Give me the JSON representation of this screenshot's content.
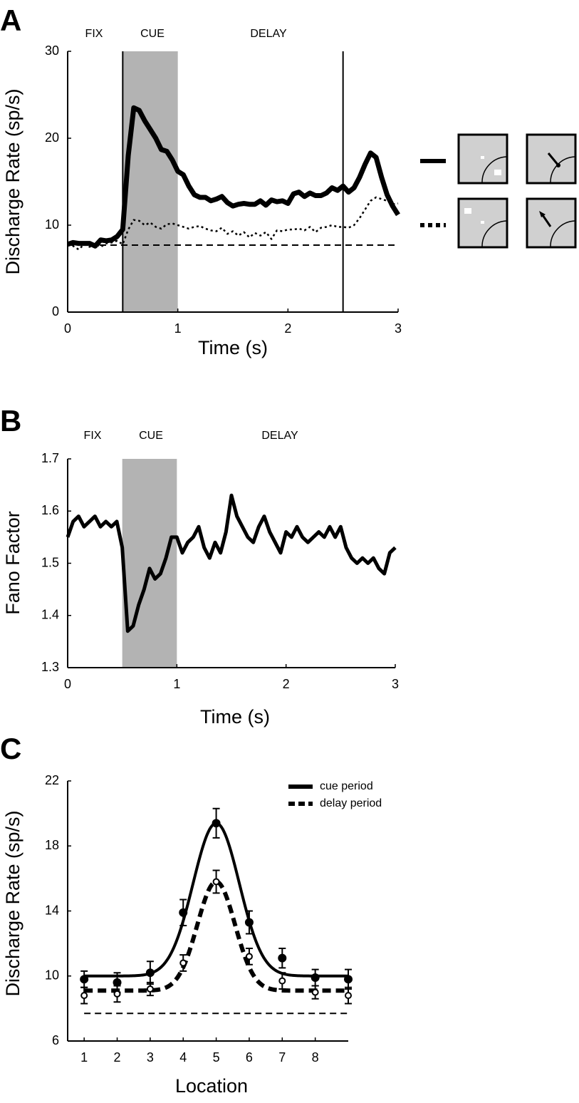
{
  "chart_data": [
    {
      "type": "line",
      "panel": "A",
      "period_labels": [
        "FIX",
        "CUE",
        "DELAY"
      ],
      "xlabel": "Time (s)",
      "ylabel": "Discharge Rate (sp/s)",
      "xlim": [
        0,
        3
      ],
      "ylim": [
        0,
        30
      ],
      "xticks": [
        0,
        1,
        2,
        3
      ],
      "yticks": [
        0,
        10,
        20,
        30
      ],
      "shaded": [
        0.5,
        1
      ],
      "vlines": [
        0.5,
        2.5
      ],
      "baseline": 7.7,
      "x": [
        0,
        0.05,
        0.1,
        0.15,
        0.2,
        0.25,
        0.3,
        0.35,
        0.4,
        0.45,
        0.5,
        0.55,
        0.6,
        0.65,
        0.7,
        0.75,
        0.8,
        0.85,
        0.9,
        0.95,
        1,
        1.05,
        1.1,
        1.15,
        1.2,
        1.25,
        1.3,
        1.35,
        1.4,
        1.45,
        1.5,
        1.55,
        1.6,
        1.65,
        1.7,
        1.75,
        1.8,
        1.85,
        1.9,
        1.95,
        2,
        2.05,
        2.1,
        2.15,
        2.2,
        2.25,
        2.3,
        2.35,
        2.4,
        2.45,
        2.5,
        2.55,
        2.6,
        2.65,
        2.7,
        2.75,
        2.8,
        2.85,
        2.9,
        2.95,
        3
      ],
      "series": [
        {
          "color": "#000000",
          "style": "solid",
          "values": [
            7.8,
            8.0,
            7.9,
            7.9,
            7.9,
            7.6,
            8.3,
            8.2,
            8.3,
            8.7,
            9.5,
            18,
            23.5,
            23.2,
            22,
            21,
            20,
            18.7,
            18.5,
            17.5,
            16.2,
            15.8,
            14.5,
            13.5,
            13.2,
            13.2,
            12.8,
            13.0,
            13.3,
            12.6,
            12.2,
            12.4,
            12.5,
            12.4,
            12.4,
            12.8,
            12.3,
            12.9,
            12.7,
            12.8,
            12.5,
            13.6,
            13.8,
            13.3,
            13.7,
            13.4,
            13.4,
            13.7,
            14.3,
            14.0,
            14.5,
            13.8,
            14.3,
            15.5,
            17.0,
            18.3,
            17.8,
            15.5,
            13.5,
            12.2,
            11.2
          ]
        },
        {
          "color": "#000000",
          "style": "dotted",
          "values": [
            7.8,
            7.6,
            7.2,
            7.8,
            7.5,
            7.9,
            7.5,
            7.9,
            8.0,
            8.2,
            7.8,
            9.5,
            10.6,
            10.5,
            10.0,
            10.3,
            9.8,
            9.6,
            10.1,
            10.2,
            10.0,
            9.8,
            9.6,
            9.8,
            9.9,
            9.6,
            9.4,
            9.3,
            9.7,
            9.0,
            9.3,
            8.8,
            9.2,
            8.6,
            9.1,
            8.8,
            9.2,
            8.4,
            9.4,
            9.3,
            9.5,
            9.5,
            9.6,
            9.4,
            9.8,
            9.2,
            9.7,
            9.8,
            10.0,
            9.8,
            9.8,
            9.7,
            10.0,
            10.8,
            11.8,
            12.8,
            13.2,
            13.0,
            12.8,
            12.4,
            12.5
          ]
        }
      ]
    },
    {
      "type": "line",
      "panel": "B",
      "period_labels": [
        "FIX",
        "CUE",
        "DELAY"
      ],
      "xlabel": "Time (s)",
      "ylabel": "Fano Factor",
      "xlim": [
        0,
        3
      ],
      "ylim": [
        1.3,
        1.7
      ],
      "xticks": [
        0,
        1,
        2,
        3
      ],
      "yticks": [
        1.3,
        1.4,
        1.5,
        1.6,
        1.7
      ],
      "shaded": [
        0.5,
        1
      ],
      "x": [
        0,
        0.05,
        0.1,
        0.15,
        0.2,
        0.25,
        0.3,
        0.35,
        0.4,
        0.45,
        0.5,
        0.55,
        0.6,
        0.65,
        0.7,
        0.75,
        0.8,
        0.85,
        0.9,
        0.95,
        1,
        1.05,
        1.1,
        1.15,
        1.2,
        1.25,
        1.3,
        1.35,
        1.4,
        1.45,
        1.5,
        1.55,
        1.6,
        1.65,
        1.7,
        1.75,
        1.8,
        1.85,
        1.9,
        1.95,
        2,
        2.05,
        2.1,
        2.15,
        2.2,
        2.25,
        2.3,
        2.35,
        2.4,
        2.45,
        2.5,
        2.55,
        2.6,
        2.65,
        2.7,
        2.75,
        2.8,
        2.85,
        2.9,
        2.95,
        3
      ],
      "series": [
        {
          "color": "#000000",
          "style": "solid",
          "values": [
            1.55,
            1.58,
            1.59,
            1.57,
            1.58,
            1.59,
            1.57,
            1.58,
            1.57,
            1.58,
            1.53,
            1.37,
            1.38,
            1.42,
            1.45,
            1.49,
            1.47,
            1.48,
            1.51,
            1.55,
            1.55,
            1.52,
            1.54,
            1.55,
            1.57,
            1.53,
            1.51,
            1.54,
            1.52,
            1.56,
            1.63,
            1.59,
            1.57,
            1.55,
            1.54,
            1.57,
            1.59,
            1.56,
            1.54,
            1.52,
            1.56,
            1.55,
            1.57,
            1.55,
            1.54,
            1.55,
            1.56,
            1.55,
            1.57,
            1.55,
            1.57,
            1.53,
            1.51,
            1.5,
            1.51,
            1.5,
            1.51,
            1.49,
            1.48,
            1.52,
            1.53
          ]
        }
      ]
    },
    {
      "type": "errorbar",
      "panel": "C",
      "xlabel": "Location",
      "ylabel": "Discharge Rate (sp/s)",
      "xlim": [
        0.5,
        9
      ],
      "ylim": [
        6,
        22
      ],
      "xticks": [
        1,
        2,
        3,
        4,
        5,
        6,
        7,
        8
      ],
      "yticks": [
        6,
        10,
        14,
        18,
        22
      ],
      "baseline": 7.7,
      "legend": "upper right",
      "x": [
        1,
        2,
        3,
        4,
        5,
        6,
        7,
        8,
        9
      ],
      "series": [
        {
          "name": "cue period",
          "color": "#000000",
          "style": "solid",
          "marker": "filled",
          "values": [
            9.8,
            9.6,
            10.2,
            13.9,
            19.4,
            13.3,
            11.1,
            9.9,
            9.8
          ],
          "errors": [
            0.5,
            0.6,
            0.7,
            0.8,
            0.9,
            0.7,
            0.6,
            0.5,
            0.6
          ],
          "fit": {
            "baseline": 10,
            "amplitude": 9.4,
            "center": 5,
            "width": 0.7
          }
        },
        {
          "name": "delay period",
          "color": "#000000",
          "style": "dashed",
          "marker": "open",
          "values": [
            8.8,
            8.9,
            9.2,
            10.8,
            15.8,
            11.2,
            9.7,
            9.0,
            8.8
          ],
          "errors": [
            0.5,
            0.5,
            0.4,
            0.5,
            0.7,
            0.5,
            0.5,
            0.4,
            0.5
          ],
          "fit": {
            "baseline": 9.1,
            "amplitude": 6.7,
            "center": 5,
            "width": 0.57
          }
        }
      ]
    }
  ]
}
